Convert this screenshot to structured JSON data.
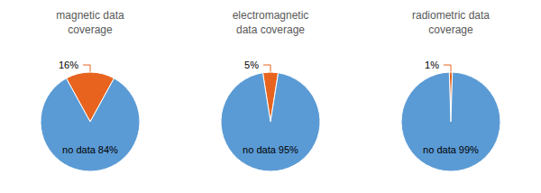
{
  "chart_data": [
    {
      "type": "pie",
      "title": "magnetic data\ncoverage",
      "values": [
        16,
        84
      ],
      "value_labels": [
        "16%",
        "no data 84%"
      ],
      "colors": [
        "#E8641E",
        "#5B9BD5"
      ],
      "data_labels": true
    },
    {
      "type": "pie",
      "title": "electromagnetic\ndata coverage",
      "values": [
        5,
        95
      ],
      "value_labels": [
        "5%",
        "no data 95%"
      ],
      "colors": [
        "#E8641E",
        "#5B9BD5"
      ],
      "data_labels": true
    },
    {
      "type": "pie",
      "title": "radiometric data\ncoverage",
      "values": [
        1,
        99
      ],
      "value_labels": [
        "1%",
        "no data 99%"
      ],
      "colors": [
        "#E8641E",
        "#5B9BD5"
      ],
      "data_labels": true
    }
  ]
}
